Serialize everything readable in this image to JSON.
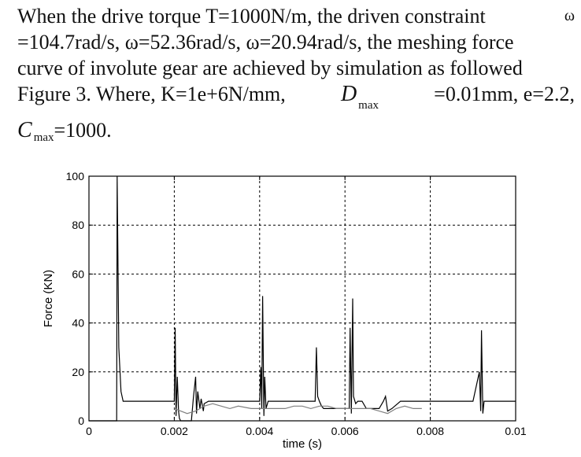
{
  "paragraph": {
    "line1_a": "When the drive torque T=1000N/m, the driven constraint",
    "line1_omega": "ω",
    "line2": "=104.7rad/s,  ω=52.36rad/s,  ω=20.94rad/s, the meshing force",
    "line3": "curve of involute gear are achieved by simulation as followed",
    "line4_a": "Figure 3.  Where,  K=1e+6N/mm,",
    "line4_D": "D",
    "line4_max": "max",
    "line4_b": "=0.01mm,  e=2.2,",
    "line5_C": "C",
    "line5_max": "max",
    "line5_b": "=1000."
  },
  "chart_data": {
    "type": "line",
    "title": "",
    "xlabel": "time (s)",
    "ylabel": "Force (KN)",
    "xlim": [
      0,
      0.01
    ],
    "ylim": [
      0,
      100
    ],
    "xticks": [
      "0",
      "0.002",
      "0.004",
      "0.006",
      "0.008",
      "0.01"
    ],
    "yticks": [
      "0",
      "20",
      "40",
      "60",
      "80",
      "100"
    ],
    "grid": true,
    "series": [
      {
        "color": "#000000",
        "x": [
          0,
          0.00065,
          0.00066,
          0.0007,
          0.00075,
          0.0008,
          0.0012,
          0.0019,
          0.002,
          0.00202,
          0.00204,
          0.00207,
          0.0021,
          0.00212,
          0.00215,
          0.0024,
          0.00245,
          0.0025,
          0.00252,
          0.00255,
          0.0026,
          0.00263,
          0.00268,
          0.0027,
          0.0028,
          0.003,
          0.004,
          0.00403,
          0.00405,
          0.00407,
          0.0041,
          0.00412,
          0.00415,
          0.0042,
          0.0043,
          0.0044,
          0.0045,
          0.0046,
          0.0052,
          0.0053,
          0.00533,
          0.00536,
          0.0054,
          0.00545,
          0.0055,
          0.006,
          0.0061,
          0.00612,
          0.00615,
          0.00618,
          0.0062,
          0.00625,
          0.0063,
          0.0064,
          0.0065,
          0.0068,
          0.0069,
          0.00695,
          0.007,
          0.0071,
          0.0073,
          0.0074,
          0.0075,
          0.0076,
          0.009,
          0.00915,
          0.00918,
          0.0092,
          0.00923,
          0.00926,
          0.0093,
          0.01
        ],
        "y": [
          0,
          0,
          100,
          30,
          12,
          8,
          8,
          8,
          8,
          38,
          2,
          18,
          4,
          1,
          0,
          0,
          10,
          18,
          3,
          12,
          5,
          9,
          4,
          7,
          8,
          8,
          8,
          22,
          5,
          51,
          2,
          18,
          5,
          8,
          8,
          8,
          8,
          8,
          8,
          8,
          30,
          10,
          8,
          6,
          5,
          5,
          5,
          38,
          3,
          50,
          10,
          7,
          8,
          8,
          5,
          5,
          8,
          10,
          4,
          5,
          8,
          8,
          8,
          8,
          8,
          20,
          4,
          37,
          3,
          8,
          8,
          8
        ]
      },
      {
        "color": "#808080",
        "x": [
          0.002,
          0.0023,
          0.0025,
          0.0027,
          0.0029,
          0.0031,
          0.0033,
          0.0035,
          0.0038,
          0.004,
          0.0044,
          0.0046,
          0.0048,
          0.005,
          0.0052,
          0.0054,
          0.0056,
          0.0058,
          0.006,
          0.0064,
          0.0066,
          0.0068,
          0.007,
          0.0072,
          0.0074,
          0.0076,
          0.0078
        ],
        "y": [
          5,
          3,
          4,
          6,
          7,
          6,
          5,
          6,
          5,
          5,
          5,
          5,
          6,
          6,
          5,
          6,
          6,
          5,
          5,
          5,
          5,
          4,
          3,
          5,
          6,
          5,
          5
        ]
      }
    ]
  }
}
